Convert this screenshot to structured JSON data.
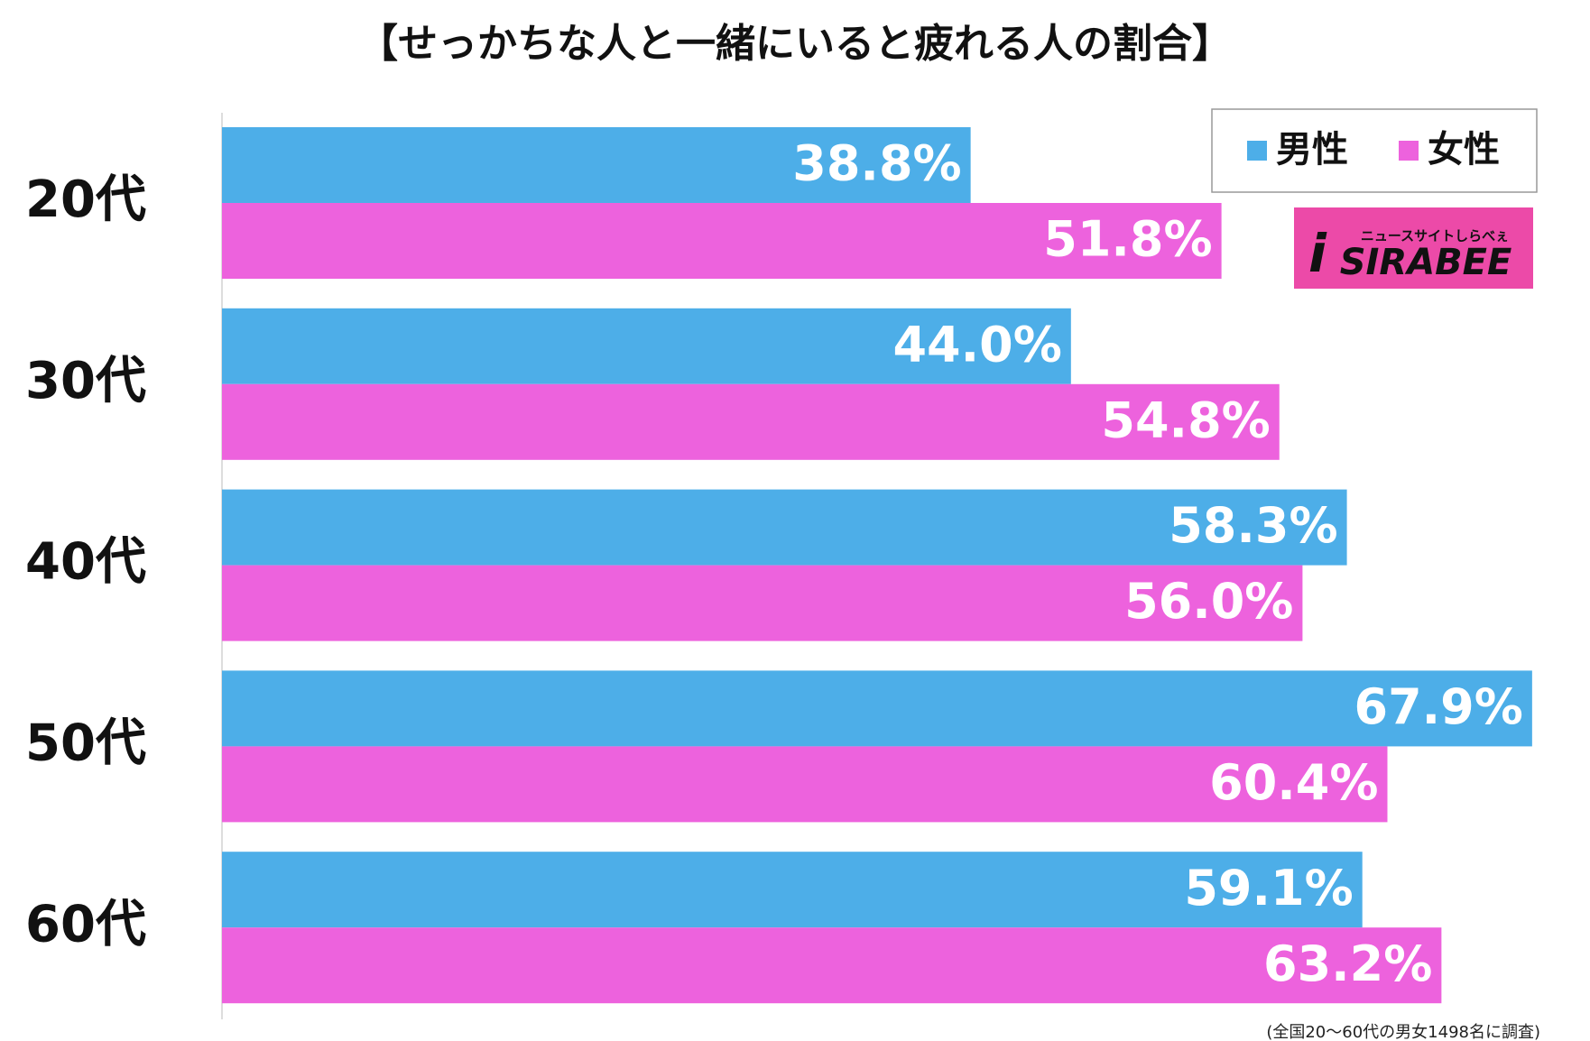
{
  "chart_data": {
    "type": "barh",
    "title": "【せっかちな人と一緒にいると疲れる人の割合】",
    "categories": [
      "20代",
      "30代",
      "40代",
      "50代",
      "60代"
    ],
    "series": [
      {
        "name": "男性",
        "color": "#4daee8",
        "values": [
          38.8,
          44.0,
          58.3,
          67.9,
          59.1
        ],
        "value_labels": [
          "38.8%",
          "44.0%",
          "58.3%",
          "67.9%",
          "59.1%"
        ]
      },
      {
        "name": "女性",
        "color": "#ed62dd",
        "values": [
          51.8,
          54.8,
          56.0,
          60.4,
          63.2
        ],
        "value_labels": [
          "51.8%",
          "54.8%",
          "56.0%",
          "60.4%",
          "63.2%"
        ]
      }
    ],
    "xlim": [
      0,
      68
    ],
    "legend": "upper right",
    "logo_text": "SIRABEE",
    "logo_tagline": "ニュースサイトしらべぇ",
    "footnote": "(全国20〜60代の男女1498名に調査)"
  }
}
